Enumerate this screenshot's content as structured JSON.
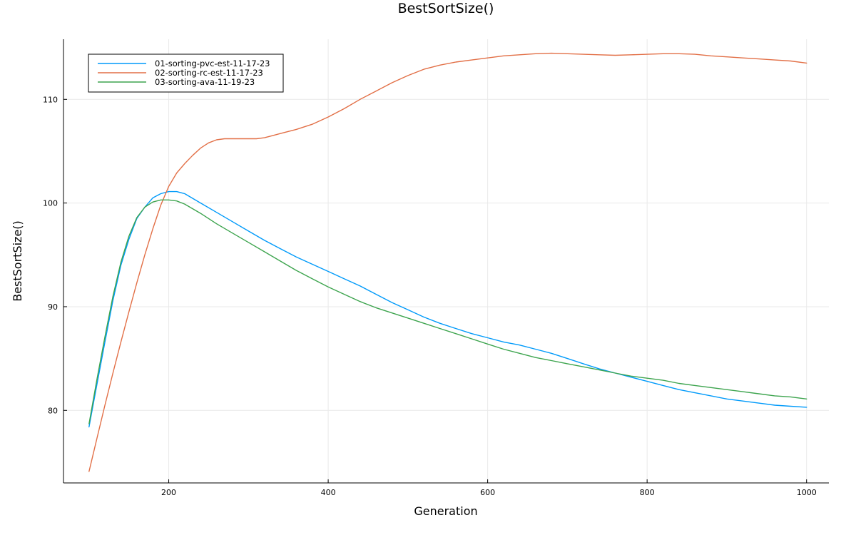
{
  "chart_data": {
    "type": "line",
    "title": "BestSortSize()",
    "xlabel": "Generation",
    "ylabel": "BestSortSize()",
    "xlim": [
      68,
      1028
    ],
    "ylim": [
      73,
      115.8
    ],
    "xticks": [
      200,
      400,
      600,
      800,
      1000
    ],
    "yticks": [
      80,
      90,
      100,
      110
    ],
    "grid": true,
    "legend_position": "top-left",
    "series": [
      {
        "name": "01-sorting-pvc-est-11-17-23",
        "color": "#009AFA",
        "x": [
          100,
          110,
          120,
          130,
          140,
          150,
          160,
          170,
          180,
          190,
          200,
          210,
          220,
          240,
          260,
          280,
          300,
          320,
          340,
          360,
          380,
          400,
          420,
          440,
          460,
          480,
          500,
          520,
          540,
          560,
          580,
          600,
          620,
          640,
          660,
          680,
          700,
          720,
          740,
          760,
          780,
          800,
          820,
          840,
          860,
          880,
          900,
          920,
          940,
          960,
          980,
          1000
        ],
        "y": [
          78.4,
          82.5,
          86.6,
          90.6,
          94.0,
          96.5,
          98.5,
          99.6,
          100.5,
          100.9,
          101.1,
          101.1,
          100.9,
          100.0,
          99.1,
          98.2,
          97.3,
          96.4,
          95.6,
          94.8,
          94.1,
          93.4,
          92.7,
          92.0,
          91.2,
          90.4,
          89.7,
          89.0,
          88.4,
          87.9,
          87.4,
          87.0,
          86.6,
          86.3,
          85.9,
          85.5,
          85.0,
          84.5,
          84.0,
          83.6,
          83.2,
          82.8,
          82.4,
          82.0,
          81.7,
          81.4,
          81.1,
          80.9,
          80.7,
          80.5,
          80.4,
          80.3
        ]
      },
      {
        "name": "02-sorting-rc-est-11-17-23",
        "color": "#E26F46",
        "x": [
          100,
          110,
          120,
          130,
          140,
          150,
          160,
          170,
          180,
          190,
          200,
          210,
          220,
          230,
          240,
          250,
          260,
          270,
          280,
          290,
          300,
          310,
          320,
          330,
          340,
          360,
          380,
          400,
          420,
          440,
          460,
          480,
          500,
          520,
          540,
          560,
          580,
          600,
          620,
          640,
          660,
          680,
          700,
          720,
          740,
          760,
          780,
          800,
          820,
          840,
          860,
          880,
          900,
          920,
          940,
          960,
          980,
          1000
        ],
        "y": [
          74.1,
          77.3,
          80.5,
          83.6,
          86.6,
          89.5,
          92.3,
          95.0,
          97.5,
          99.8,
          101.6,
          102.9,
          103.8,
          104.6,
          105.3,
          105.8,
          106.1,
          106.2,
          106.2,
          106.2,
          106.2,
          106.2,
          106.3,
          106.5,
          106.7,
          107.1,
          107.6,
          108.3,
          109.1,
          110.0,
          110.8,
          111.6,
          112.3,
          112.9,
          113.3,
          113.6,
          113.8,
          114.0,
          114.2,
          114.3,
          114.4,
          114.45,
          114.4,
          114.35,
          114.3,
          114.25,
          114.3,
          114.35,
          114.4,
          114.4,
          114.35,
          114.2,
          114.1,
          114.0,
          113.9,
          113.8,
          113.7,
          113.5
        ]
      },
      {
        "name": "03-sorting-ava-11-19-23",
        "color": "#3DA44E",
        "x": [
          100,
          110,
          120,
          130,
          140,
          150,
          160,
          170,
          180,
          190,
          200,
          210,
          220,
          240,
          260,
          280,
          300,
          320,
          340,
          360,
          380,
          400,
          420,
          440,
          460,
          480,
          500,
          520,
          540,
          560,
          580,
          600,
          620,
          640,
          660,
          680,
          700,
          720,
          740,
          760,
          780,
          800,
          820,
          840,
          860,
          880,
          900,
          920,
          940,
          960,
          980,
          1000
        ],
        "y": [
          78.7,
          83.0,
          87.1,
          91.0,
          94.3,
          96.8,
          98.6,
          99.6,
          100.1,
          100.3,
          100.3,
          100.2,
          99.9,
          99.0,
          98.0,
          97.1,
          96.2,
          95.3,
          94.4,
          93.5,
          92.7,
          91.9,
          91.2,
          90.5,
          89.9,
          89.4,
          88.9,
          88.4,
          87.9,
          87.4,
          86.9,
          86.4,
          85.9,
          85.5,
          85.1,
          84.8,
          84.5,
          84.2,
          83.9,
          83.6,
          83.3,
          83.1,
          82.9,
          82.6,
          82.4,
          82.2,
          82.0,
          81.8,
          81.6,
          81.4,
          81.3,
          81.1
        ]
      }
    ]
  }
}
